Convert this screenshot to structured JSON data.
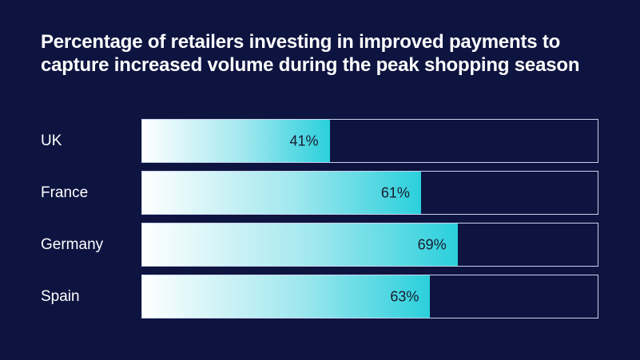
{
  "chart_data": {
    "type": "bar",
    "orientation": "horizontal",
    "title": "Percentage of retailers investing in improved payments to capture increased volume during the peak shopping season",
    "categories": [
      "UK",
      "France",
      "Germany",
      "Spain"
    ],
    "values": [
      41,
      61,
      69,
      63
    ],
    "value_labels": [
      "41%",
      "61%",
      "69%",
      "63%"
    ],
    "xlim": [
      0,
      100
    ],
    "grid": false,
    "colors": {
      "background": "#0e1440",
      "bar_start": "#ffffff",
      "bar_end": "#2ad0dc",
      "track_border": "#c9d3ec",
      "text": "#ffffff",
      "value_text": "#1a1a2e"
    }
  }
}
